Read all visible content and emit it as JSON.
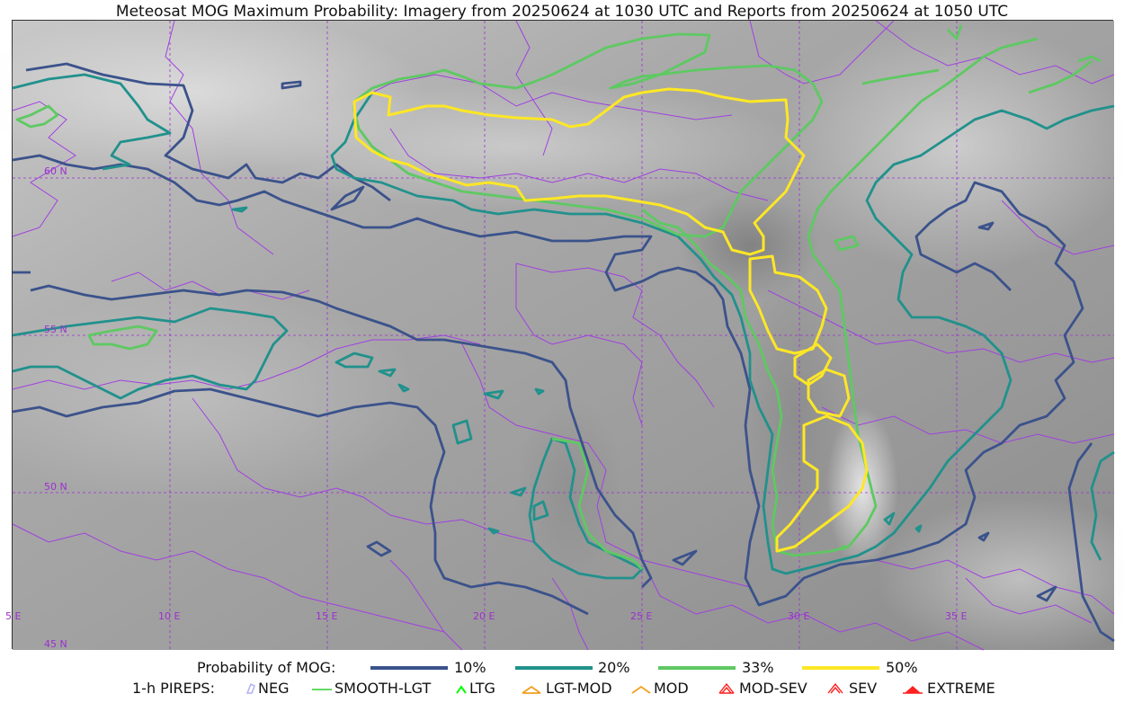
{
  "title": "Meteosat MOG Maximum Probability: Imagery from 20250624 at 1030 UTC and Reports from 20250624 at 1050 UTC",
  "map": {
    "lon_labels": [
      "5 E",
      "10 E",
      "15 E",
      "20 E",
      "25 E",
      "30 E",
      "35 E"
    ],
    "lat_labels": [
      "60 N",
      "55 N",
      "50 N",
      "45 N"
    ],
    "graticule_color": "#9b30d0",
    "border_color": "#a040e0",
    "contour_levels": [
      {
        "label": "10%",
        "color": "#3b528b"
      },
      {
        "label": "20%",
        "color": "#21918c"
      },
      {
        "label": "33%",
        "color": "#5ec962"
      },
      {
        "label": "50%",
        "color": "#fde725"
      }
    ]
  },
  "legend": {
    "prob_title": "Probability of MOG:",
    "prob_items": [
      "10%",
      "20%",
      "33%",
      "50%"
    ],
    "pirep_title": "1-h PIREPS:",
    "pirep_items": [
      {
        "label": "NEG",
        "color": "#b0b0f0",
        "icon": "neg-marker-icon"
      },
      {
        "label": "SMOOTH-LGT",
        "color": "#32cd32",
        "icon": "line-icon"
      },
      {
        "label": "LTG",
        "color": "#00ff00",
        "icon": "caret-icon"
      },
      {
        "label": "LGT-MOD",
        "color": "#f0a020",
        "icon": "caret-icon"
      },
      {
        "label": "MOD",
        "color": "#f0a020",
        "icon": "caret-icon"
      },
      {
        "label": "MOD-SEV",
        "color": "#ff2020",
        "icon": "double-caret-icon"
      },
      {
        "label": "SEV",
        "color": "#ff2020",
        "icon": "double-caret-icon"
      },
      {
        "label": "EXTREME",
        "color": "#ff2020",
        "icon": "filled-caret-icon"
      }
    ]
  }
}
